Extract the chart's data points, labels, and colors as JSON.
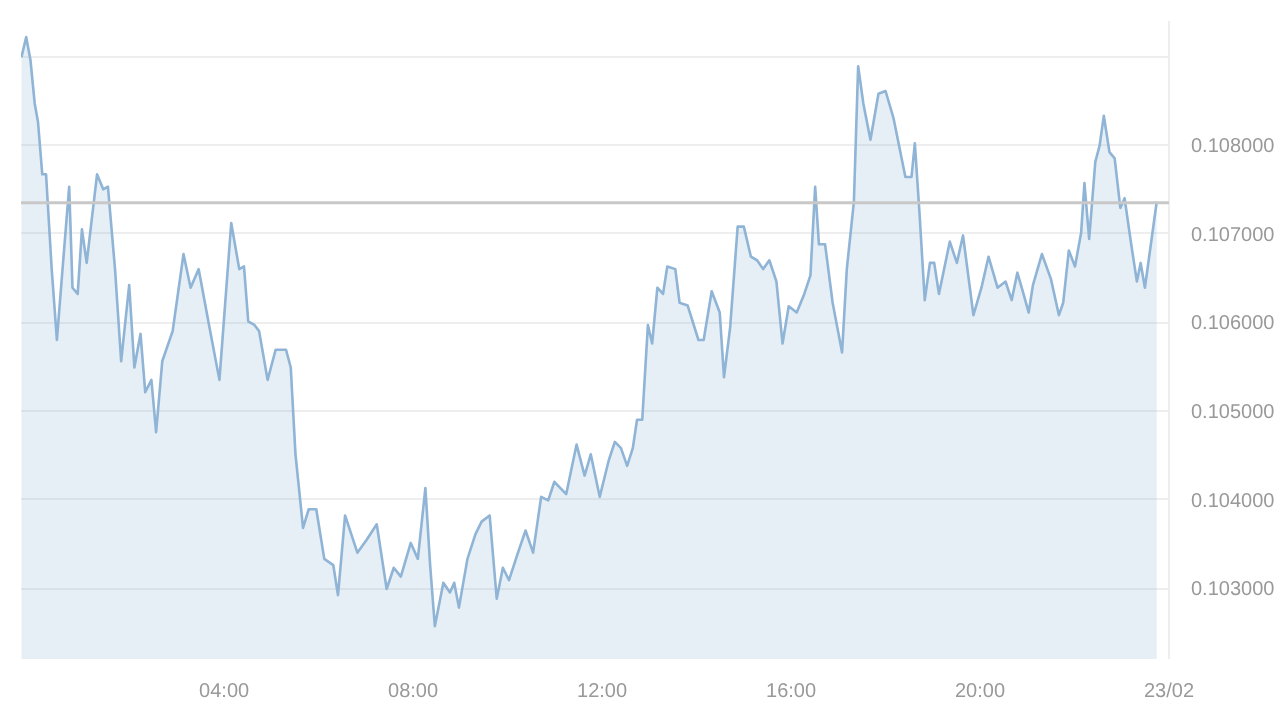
{
  "chart_data": {
    "type": "area",
    "xlim": [
      -0.3,
      24.0
    ],
    "ylim": [
      0.1022,
      0.1094
    ],
    "xticks": [
      {
        "value": 4,
        "label": "04:00"
      },
      {
        "value": 8,
        "label": "08:00"
      },
      {
        "value": 12,
        "label": "12:00"
      },
      {
        "value": 16,
        "label": "16:00"
      },
      {
        "value": 20,
        "label": "20:00"
      },
      {
        "value": 24,
        "label": "23/02"
      }
    ],
    "yticks": [
      {
        "value": 0.103,
        "label": "0.103000"
      },
      {
        "value": 0.104,
        "label": "0.104000"
      },
      {
        "value": 0.105,
        "label": "0.105000"
      },
      {
        "value": 0.106,
        "label": "0.106000"
      },
      {
        "value": 0.107,
        "label": "0.107000"
      },
      {
        "value": 0.108,
        "label": "0.108000"
      },
      {
        "value": 0.109,
        "label": null
      }
    ],
    "grid": "y",
    "marker": "none",
    "line_style": "solid",
    "ref_lines": [
      {
        "axis": "y",
        "value": 0.10735,
        "color": "#c8c8c8"
      }
    ],
    "series": [
      {
        "color": "#8fb4d6",
        "x": [
          -0.29,
          -0.19,
          -0.1,
          -0.01,
          0.06,
          0.15,
          0.23,
          0.35,
          0.46,
          0.6,
          0.72,
          0.79,
          0.9,
          0.99,
          1.09,
          1.18,
          1.31,
          1.44,
          1.54,
          1.69,
          1.82,
          1.99,
          2.1,
          2.23,
          2.33,
          2.46,
          2.56,
          2.69,
          2.91,
          3.14,
          3.29,
          3.46,
          3.68,
          3.9,
          4.15,
          4.32,
          4.42,
          4.51,
          4.64,
          4.74,
          4.92,
          5.09,
          5.31,
          5.41,
          5.51,
          5.67,
          5.79,
          5.95,
          6.12,
          6.31,
          6.41,
          6.56,
          6.82,
          7.01,
          7.23,
          7.44,
          7.59,
          7.74,
          7.95,
          8.1,
          8.26,
          8.36,
          8.46,
          8.64,
          8.78,
          8.87,
          8.97,
          9.15,
          9.32,
          9.45,
          9.62,
          9.77,
          9.9,
          10.03,
          10.22,
          10.38,
          10.54,
          10.71,
          10.86,
          10.99,
          11.24,
          11.46,
          11.63,
          11.76,
          11.95,
          12.14,
          12.27,
          12.4,
          12.53,
          12.65,
          12.74,
          12.85,
          12.97,
          13.06,
          13.17,
          13.29,
          13.38,
          13.55,
          13.64,
          13.81,
          14.04,
          14.15,
          14.32,
          14.49,
          14.58,
          14.71,
          14.87,
          15.0,
          15.15,
          15.28,
          15.41,
          15.54,
          15.69,
          15.82,
          15.95,
          16.12,
          16.28,
          16.41,
          16.51,
          16.59,
          16.72,
          16.88,
          17.08,
          17.18,
          17.33,
          17.42,
          17.53,
          17.68,
          17.85,
          18.0,
          18.17,
          18.42,
          18.55,
          18.62,
          18.72,
          18.83,
          18.94,
          19.03,
          19.13,
          19.36,
          19.51,
          19.64,
          19.86,
          20.03,
          20.18,
          20.37,
          20.54,
          20.67,
          20.79,
          20.92,
          21.03,
          21.12,
          21.31,
          21.5,
          21.67,
          21.76,
          21.88,
          22.01,
          22.14,
          22.21,
          22.31,
          22.44,
          22.53,
          22.62,
          22.74,
          22.85,
          22.97,
          23.06,
          23.2,
          23.32,
          23.4,
          23.49,
          23.74
        ],
        "values": [
          0.10899,
          0.10922,
          0.10896,
          0.10847,
          0.10826,
          0.10767,
          0.10767,
          0.1066,
          0.1058,
          0.10674,
          0.10753,
          0.10639,
          0.10632,
          0.10705,
          0.10667,
          0.10708,
          0.10767,
          0.1075,
          0.10753,
          0.1066,
          0.10556,
          0.10642,
          0.10549,
          0.10587,
          0.10521,
          0.10535,
          0.10476,
          0.10556,
          0.1059,
          0.10677,
          0.10639,
          0.1066,
          0.10597,
          0.10535,
          0.10712,
          0.1066,
          0.10663,
          0.10601,
          0.10597,
          0.1059,
          0.10535,
          0.10569,
          0.10569,
          0.10549,
          0.10451,
          0.10368,
          0.10389,
          0.10389,
          0.10333,
          0.10326,
          0.10292,
          0.10382,
          0.1034,
          0.10354,
          0.10372,
          0.10299,
          0.10323,
          0.10313,
          0.10351,
          0.10333,
          0.10413,
          0.10326,
          0.10257,
          0.10306,
          0.10295,
          0.10306,
          0.10278,
          0.10333,
          0.10361,
          0.10375,
          0.10382,
          0.10288,
          0.10323,
          0.10309,
          0.1034,
          0.10365,
          0.1034,
          0.10403,
          0.10399,
          0.1042,
          0.10406,
          0.10462,
          0.10427,
          0.10451,
          0.10403,
          0.10444,
          0.10465,
          0.10458,
          0.10438,
          0.10458,
          0.1049,
          0.1049,
          0.10597,
          0.10576,
          0.10639,
          0.10632,
          0.10663,
          0.1066,
          0.10622,
          0.10619,
          0.1058,
          0.1058,
          0.10635,
          0.10611,
          0.10538,
          0.10594,
          0.10708,
          0.10708,
          0.10674,
          0.1067,
          0.1066,
          0.1067,
          0.10646,
          0.10576,
          0.10618,
          0.10611,
          0.10632,
          0.10653,
          0.10753,
          0.10688,
          0.10688,
          0.10622,
          0.10566,
          0.1066,
          0.10736,
          0.10889,
          0.10847,
          0.10806,
          0.10858,
          0.10861,
          0.1083,
          0.10764,
          0.10764,
          0.10802,
          0.10722,
          0.10625,
          0.10667,
          0.10667,
          0.10632,
          0.10691,
          0.10667,
          0.10698,
          0.10608,
          0.10639,
          0.10674,
          0.10639,
          0.10646,
          0.10625,
          0.10656,
          0.10632,
          0.10611,
          0.10642,
          0.10677,
          0.10649,
          0.10608,
          0.10622,
          0.10681,
          0.10663,
          0.10701,
          0.10757,
          0.10694,
          0.10781,
          0.10799,
          0.10833,
          0.10792,
          0.10785,
          0.10729,
          0.1074,
          0.10688,
          0.10646,
          0.10667,
          0.10639,
          0.10736
        ]
      }
    ]
  }
}
